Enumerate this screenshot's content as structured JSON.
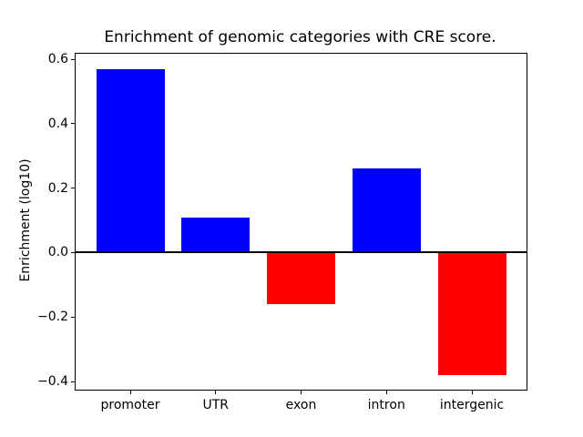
{
  "chart_data": {
    "type": "bar",
    "title": "Enrichment of genomic categories with CRE score.",
    "ylabel": "Enrichment (log10)",
    "xlabel": "",
    "categories": [
      "promoter",
      "UTR",
      "exon",
      "intron",
      "intergenic"
    ],
    "values": [
      0.57,
      0.11,
      -0.16,
      0.26,
      -0.38
    ],
    "bar_colors": [
      "#0000ff",
      "#0000ff",
      "#ff0000",
      "#0000ff",
      "#ff0000"
    ],
    "positive_color": "#0000ff",
    "negative_color": "#ff0000",
    "yticks": [
      -0.4,
      -0.2,
      0.0,
      0.2,
      0.4,
      0.6
    ],
    "ylim": [
      -0.425,
      0.617
    ],
    "xlim": [
      -0.64,
      4.64
    ],
    "bar_width": 0.8,
    "zero_line": true,
    "grid": false,
    "legend": null,
    "axis_color": "#000000",
    "background_color": "#ffffff"
  }
}
